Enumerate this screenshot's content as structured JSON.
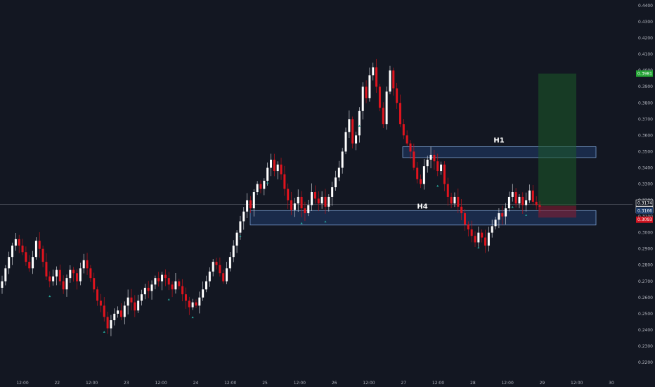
{
  "chart_data": {
    "type": "candlestick",
    "y_axis": {
      "range": [
        0.215,
        0.44
      ],
      "ticks": [
        "0.2200",
        "0.2300",
        "0.2400",
        "0.2500",
        "0.2600",
        "0.2700",
        "0.2800",
        "0.2900",
        "0.3000",
        "0.3100",
        "0.3200",
        "0.3300",
        "0.3400",
        "0.3500",
        "0.3600",
        "0.3700",
        "0.3800",
        "0.3900",
        "0.4000",
        "0.4100",
        "0.4200",
        "0.4300",
        "0.4400"
      ]
    },
    "x_axis": {
      "labels": [
        "12:00",
        "22",
        "12:00",
        "23",
        "12:00",
        "24",
        "12:00",
        "25",
        "12:00",
        "26",
        "12:00",
        "27",
        "12:00",
        "28",
        "12:00",
        "29",
        "12:00",
        "30"
      ]
    },
    "price_badges": {
      "target": "0.3981",
      "current": "0.3174",
      "countdown": "52:43",
      "entry": "0.3166",
      "stop": "0.3093"
    },
    "zones": [
      {
        "label": "H1",
        "low": 0.3463,
        "high": 0.353
      },
      {
        "label": "H4",
        "low": 0.3047,
        "high": 0.3136
      }
    ],
    "position": {
      "target": 0.3981,
      "entry": 0.3166,
      "stop": 0.3093
    },
    "series_close": [
      0.27,
      0.278,
      0.285,
      0.292,
      0.296,
      0.292,
      0.288,
      0.282,
      0.278,
      0.285,
      0.295,
      0.29,
      0.282,
      0.273,
      0.27,
      0.273,
      0.277,
      0.27,
      0.265,
      0.272,
      0.277,
      0.275,
      0.27,
      0.278,
      0.283,
      0.278,
      0.272,
      0.265,
      0.258,
      0.255,
      0.248,
      0.241,
      0.246,
      0.25,
      0.252,
      0.248,
      0.255,
      0.26,
      0.257,
      0.252,
      0.258,
      0.262,
      0.266,
      0.264,
      0.268,
      0.272,
      0.27,
      0.274,
      0.272,
      0.268,
      0.265,
      0.27,
      0.267,
      0.262,
      0.258,
      0.254,
      0.257,
      0.255,
      0.26,
      0.265,
      0.27,
      0.276,
      0.282,
      0.28,
      0.275,
      0.27,
      0.278,
      0.285,
      0.292,
      0.3,
      0.307,
      0.313,
      0.32,
      0.315,
      0.325,
      0.33,
      0.327,
      0.332,
      0.34,
      0.345,
      0.338,
      0.342,
      0.336,
      0.327,
      0.32,
      0.314,
      0.318,
      0.322,
      0.315,
      0.312,
      0.317,
      0.325,
      0.321,
      0.318,
      0.322,
      0.316,
      0.322,
      0.328,
      0.334,
      0.34,
      0.35,
      0.362,
      0.37,
      0.355,
      0.36,
      0.375,
      0.39,
      0.383,
      0.397,
      0.402,
      0.39,
      0.377,
      0.367,
      0.387,
      0.4,
      0.389,
      0.38,
      0.367,
      0.36,
      0.355,
      0.35,
      0.34,
      0.333,
      0.33,
      0.341,
      0.345,
      0.348,
      0.344,
      0.338,
      0.342,
      0.33,
      0.322,
      0.318,
      0.322,
      0.316,
      0.312,
      0.305,
      0.302,
      0.298,
      0.294,
      0.3,
      0.297,
      0.292,
      0.3,
      0.304,
      0.308,
      0.312,
      0.31,
      0.315,
      0.322,
      0.325,
      0.318,
      0.322,
      0.317,
      0.32,
      0.326,
      0.319,
      0.317,
      0.316
    ]
  }
}
